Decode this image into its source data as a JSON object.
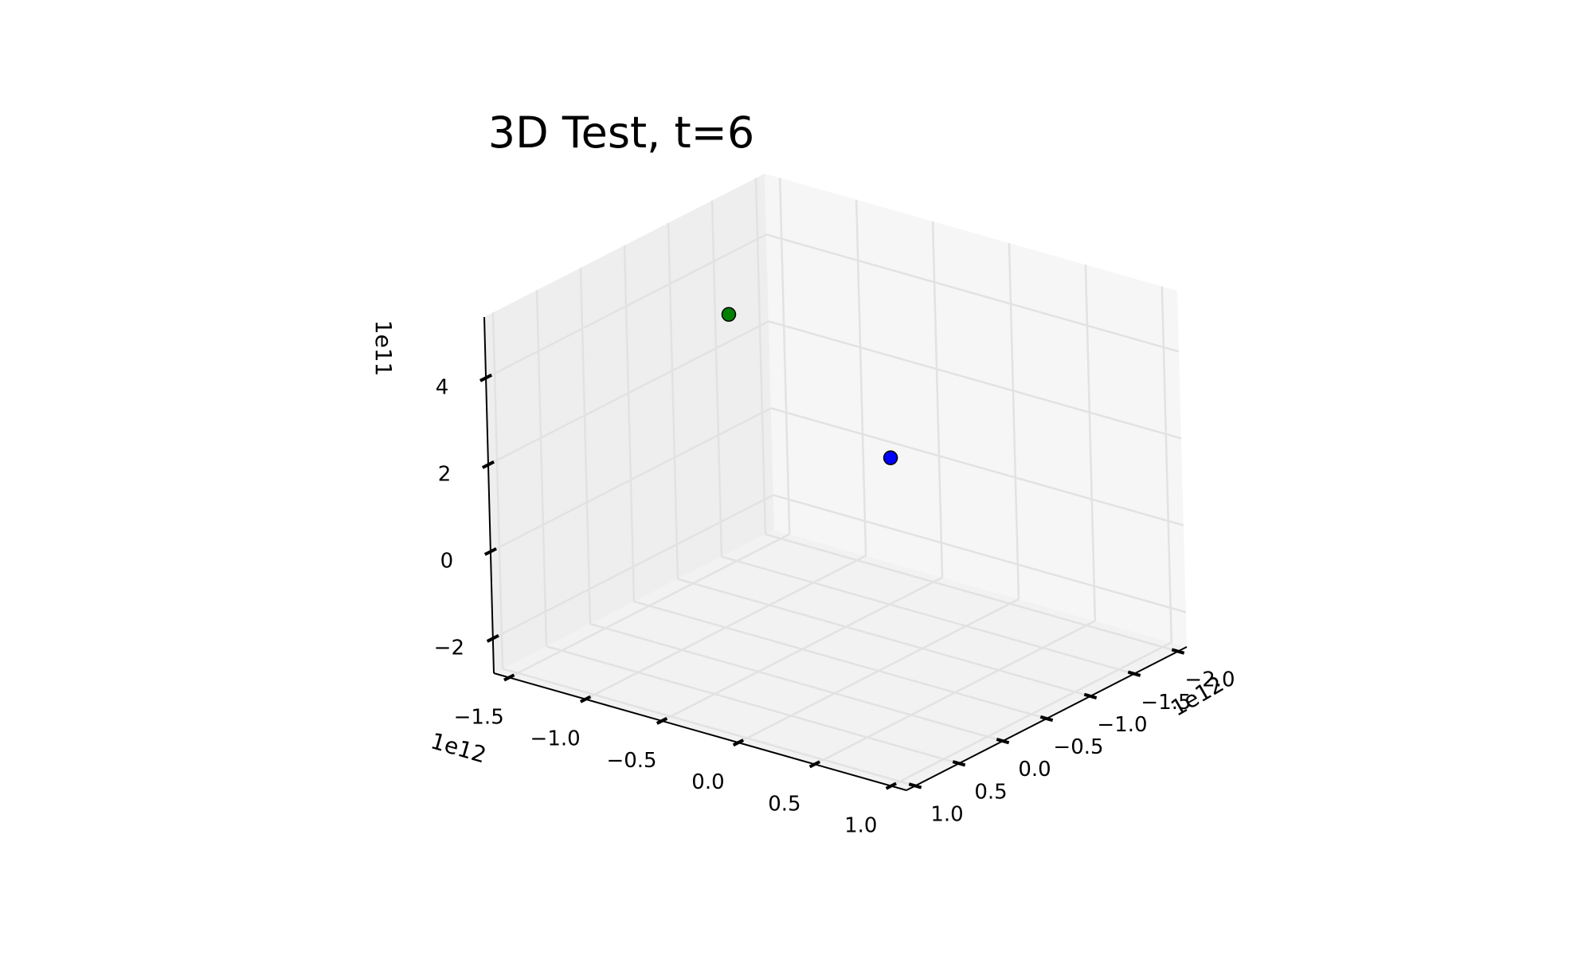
{
  "chart_data": {
    "type": "scatter",
    "title": "3D Test, t=6",
    "xlim": [
      -1.6,
      1.1
    ],
    "ylim": [
      -2.1,
      1.1
    ],
    "zlim": [
      -2.8,
      5.4
    ],
    "x_ticks": [
      -1.5,
      -1.0,
      -0.5,
      0.0,
      0.5,
      1.0
    ],
    "x_tick_labels": [
      "−1.5",
      "−1.0",
      "−0.5",
      "0.0",
      "0.5",
      "1.0"
    ],
    "x_offset": "1e12",
    "y_ticks": [
      -2.0,
      -1.5,
      -1.0,
      -0.5,
      0.0,
      0.5,
      1.0
    ],
    "y_tick_labels": [
      "−2.0",
      "−1.5",
      "−1.0",
      "−0.5",
      "0.0",
      "0.5",
      "1.0"
    ],
    "y_offset": "1e12",
    "z_ticks": [
      -2,
      0,
      2,
      4
    ],
    "z_tick_labels": [
      "−2",
      "0",
      "2",
      "4"
    ],
    "z_offset": "1e11",
    "grid": true,
    "points": [
      {
        "x": -1.1,
        "y": -0.8,
        "z": 4.0,
        "color": "#008000"
      },
      {
        "x": 0.0,
        "y": -0.7,
        "z": 1.9,
        "color": "#0000ff"
      }
    ]
  }
}
